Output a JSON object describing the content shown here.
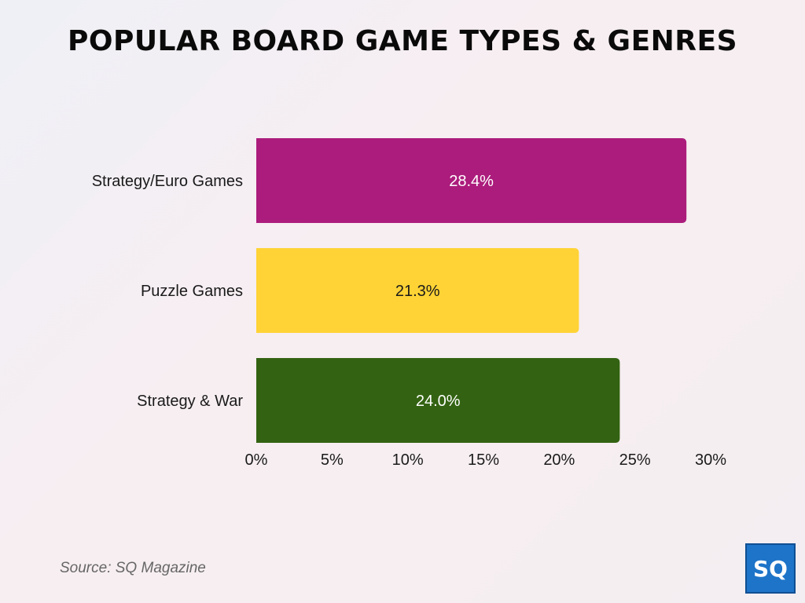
{
  "title": "POPULAR BOARD GAME TYPES & GENRES",
  "source": "Source: SQ Magazine",
  "logo_text": "SQ",
  "colors": {
    "logo_bg": "#1e74c8"
  },
  "chart_data": {
    "type": "bar",
    "orientation": "horizontal",
    "title": "POPULAR BOARD GAME TYPES & GENRES",
    "categories": [
      "Strategy/Euro Games",
      "Puzzle Games",
      "Strategy & War"
    ],
    "values": [
      28.4,
      21.3,
      24.0
    ],
    "value_labels": [
      "28.4%",
      "21.3%",
      "24.0%"
    ],
    "colors": [
      "#ac1c7c",
      "#ffd335",
      "#336312"
    ],
    "label_colors": [
      "#ffffff",
      "#1a1a1a",
      "#ffffff"
    ],
    "xlim": [
      0,
      30
    ],
    "xticks": [
      0,
      5,
      10,
      15,
      20,
      25,
      30
    ],
    "xtick_labels": [
      "0%",
      "5%",
      "10%",
      "15%",
      "20%",
      "25%",
      "30%"
    ],
    "xlabel": "",
    "ylabel": "",
    "grid": false,
    "legend": "none"
  }
}
